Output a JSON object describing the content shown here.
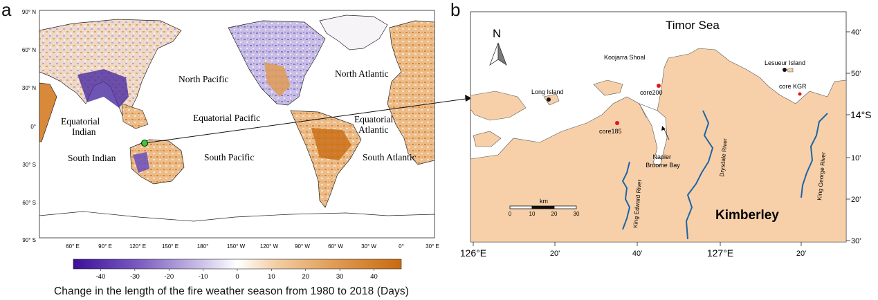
{
  "panel_a": {
    "letter": "a",
    "lat_labels": [
      {
        "label": "90° N"
      },
      {
        "label": "60° N"
      },
      {
        "label": "30° N"
      },
      {
        "label": "0°"
      },
      {
        "label": "30° S"
      },
      {
        "label": "60° S"
      },
      {
        "label": "90° S"
      }
    ],
    "lon_labels": [
      {
        "label": "60° E"
      },
      {
        "label": "90° E"
      },
      {
        "label": "120° E"
      },
      {
        "label": "150° E"
      },
      {
        "label": "180°"
      },
      {
        "label": "150° W"
      },
      {
        "label": "120° W"
      },
      {
        "label": "90° W"
      },
      {
        "label": "60° W"
      },
      {
        "label": "30° W"
      },
      {
        "label": "0°"
      },
      {
        "label": "30° E"
      }
    ],
    "ocean_labels": [
      {
        "label": "North Pacific"
      },
      {
        "label": "North Atlantic"
      },
      {
        "label": "Equatorial Pacific"
      },
      {
        "label": "Equatorial",
        "label2": "Indian"
      },
      {
        "label": "Equatorial",
        "label2": "Atlantic"
      },
      {
        "label": "South Indian"
      },
      {
        "label": "South Pacific"
      },
      {
        "label": "South Atlantic"
      }
    ],
    "colorbar": {
      "ticks": [
        "-40",
        "-30",
        "-20",
        "-10",
        "0",
        "10",
        "20",
        "30",
        "40"
      ],
      "range": [
        -48,
        48
      ],
      "colors": [
        "#3d0f9a",
        "#7a5cc0",
        "#b5a6dc",
        "#ffffff",
        "#f2cda3",
        "#e09a52",
        "#c96a10"
      ],
      "title": "Change in the length of the fire weather season from 1980 to 2018 (Days)"
    }
  },
  "panel_b": {
    "letter": "b",
    "sea_label": "Timor Sea",
    "region_label": "Kimberley",
    "north_label": "N",
    "lat_labels": [
      {
        "label": "40'"
      },
      {
        "label": "50'"
      },
      {
        "label": "14°S"
      },
      {
        "label": "10'"
      },
      {
        "label": "20'"
      },
      {
        "label": "30'"
      }
    ],
    "lon_labels": [
      {
        "label": "126°E"
      },
      {
        "label": "20'"
      },
      {
        "label": "40'"
      },
      {
        "label": "127°E"
      },
      {
        "label": "20'"
      }
    ],
    "places": [
      {
        "label": "Koojarra Shoal"
      },
      {
        "label": "Lesueur Island"
      },
      {
        "label": "Long Island"
      }
    ],
    "cores": [
      {
        "label": "core200"
      },
      {
        "label": "core KGR"
      },
      {
        "label": "core185"
      }
    ],
    "bay_label": [
      "Napier",
      "Broome Bay"
    ],
    "rivers": [
      {
        "label": "King Edward River"
      },
      {
        "label": "Drysdale River"
      },
      {
        "label": "King George River"
      }
    ],
    "scalebar": {
      "unit": "km",
      "ticks": [
        "0",
        "10",
        "20",
        "30"
      ]
    },
    "colors": {
      "land": "#f7d0a9",
      "water": "#ffffff",
      "river": "#1c64a6",
      "core": "#e01818",
      "point": "#111111"
    }
  }
}
